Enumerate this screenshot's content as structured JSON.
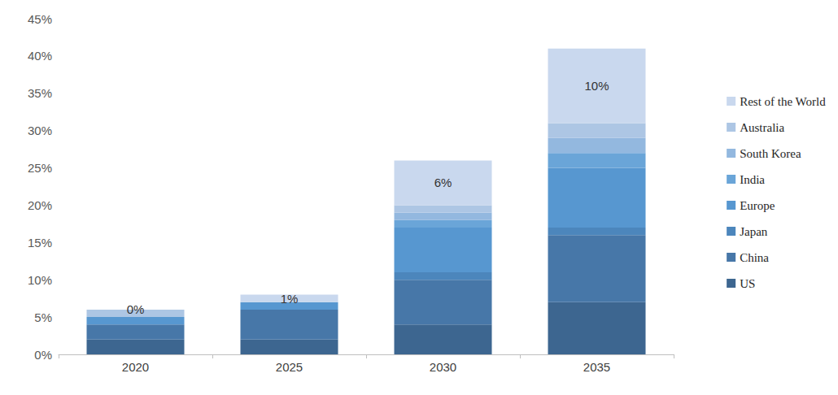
{
  "chart_data": {
    "type": "bar",
    "stacked": true,
    "grid": false,
    "legend": "right",
    "categories": [
      "2020",
      "2025",
      "2030",
      "2035"
    ],
    "ylim": [
      0,
      45
    ],
    "yticks": [
      {
        "value": 0,
        "label": "0%"
      },
      {
        "value": 5,
        "label": "5%"
      },
      {
        "value": 10,
        "label": "10%"
      },
      {
        "value": 15,
        "label": "15%"
      },
      {
        "value": 20,
        "label": "20%"
      },
      {
        "value": 25,
        "label": "25%"
      },
      {
        "value": 30,
        "label": "30%"
      },
      {
        "value": 35,
        "label": "35%"
      },
      {
        "value": 40,
        "label": "40%"
      },
      {
        "value": 45,
        "label": "45%"
      }
    ],
    "series": [
      {
        "name": "US",
        "color": "#3d6690",
        "values": [
          2,
          2,
          4,
          7
        ]
      },
      {
        "name": "China",
        "color": "#4777a8",
        "values": [
          2,
          4,
          6,
          9
        ]
      },
      {
        "name": "Japan",
        "color": "#4c86bc",
        "values": [
          0,
          0,
          1,
          1
        ]
      },
      {
        "name": "Europe",
        "color": "#5797d0",
        "values": [
          1,
          1,
          6,
          8
        ]
      },
      {
        "name": "India",
        "color": "#6aa5d8",
        "values": [
          0,
          0,
          1,
          2
        ]
      },
      {
        "name": "South Korea",
        "color": "#93b8df",
        "values": [
          0,
          0,
          1,
          2
        ]
      },
      {
        "name": "Australia",
        "color": "#adc6e4",
        "values": [
          1,
          0,
          1,
          2
        ]
      },
      {
        "name": "Rest of the World",
        "color": "#c9d8ee",
        "values": [
          0,
          1,
          6,
          10
        ],
        "data_labels": true,
        "value_labels": [
          "0%",
          "1%",
          "6%",
          "10%"
        ]
      }
    ]
  }
}
